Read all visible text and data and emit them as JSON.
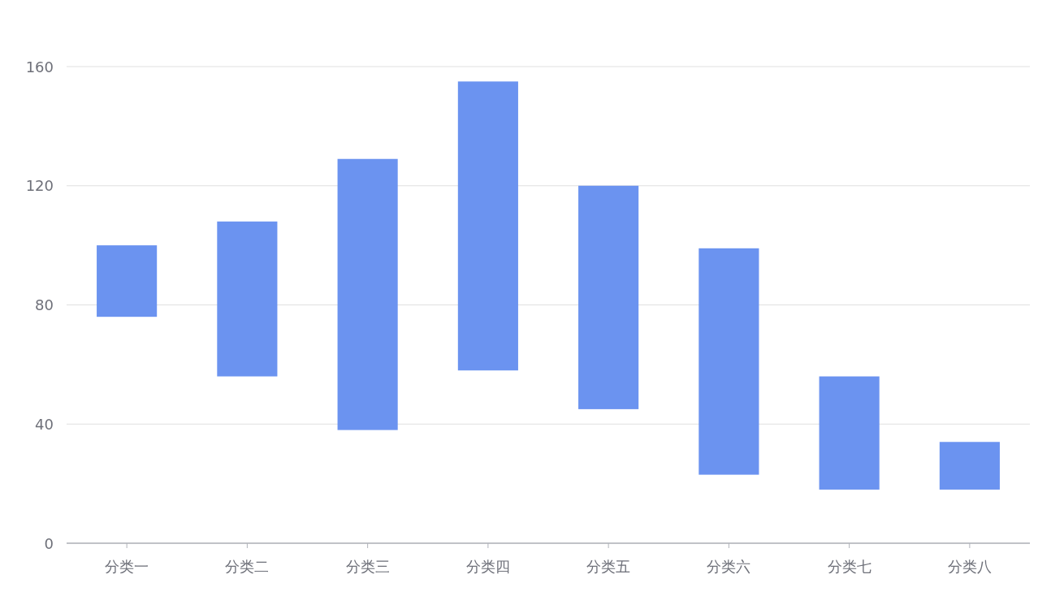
{
  "chart_data": {
    "type": "bar",
    "categories": [
      "分类一",
      "分类二",
      "分类三",
      "分类四",
      "分类五",
      "分类六",
      "分类七",
      "分类八"
    ],
    "values": [
      24,
      52,
      91,
      97,
      75,
      76,
      38,
      16
    ],
    "base": [
      76,
      56,
      38,
      58,
      45,
      23,
      18,
      18
    ],
    "color": "#6b93f0",
    "ylim": [
      0,
      160
    ],
    "yticks": [
      0,
      40,
      80,
      120,
      160
    ],
    "grid": "y"
  }
}
